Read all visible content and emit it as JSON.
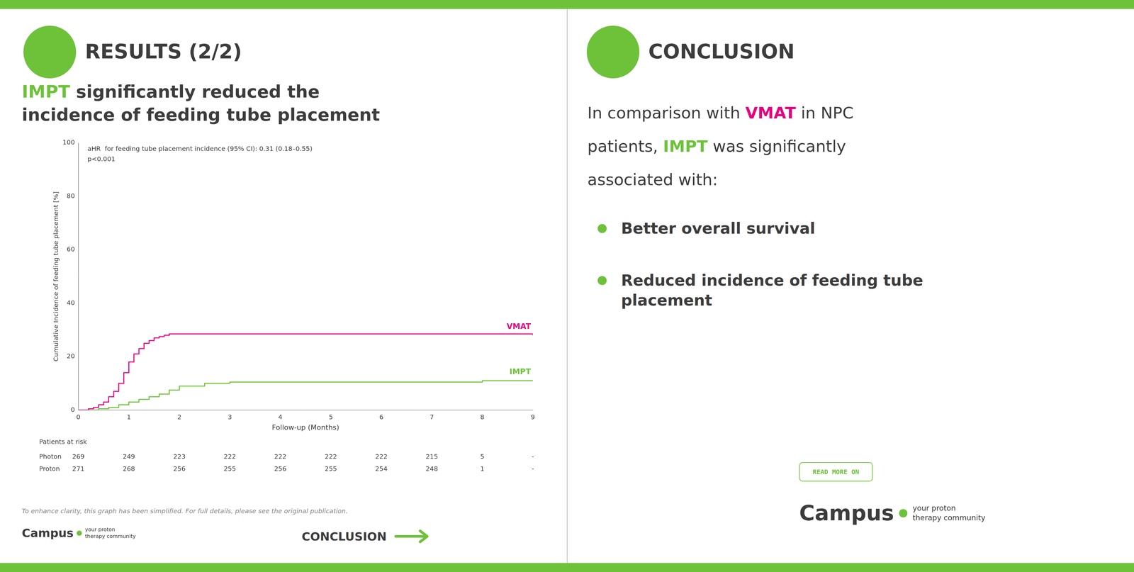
{
  "chart_data": {
    "type": "line",
    "subtitle": "RESULTS (2/2)",
    "title": [
      "IMPT significantly reduced the",
      "incidence of feeding tube placement"
    ],
    "xlabel": "Follow-up (Months)",
    "ylabel": "Cumulative Incidence of feeding tube placement [%]",
    "xlim": [
      0,
      9
    ],
    "xticks": [
      0,
      1,
      2,
      3,
      4,
      5,
      6,
      7,
      8,
      9
    ],
    "ylim": [
      0,
      100
    ],
    "yticks": [
      0,
      20,
      40,
      60,
      80,
      100
    ],
    "grid": false,
    "line_style": "steps",
    "series": [
      {
        "name": "VMAT",
        "color": "#e6007e",
        "x": [
          0,
          0.1,
          0.2,
          0.3,
          0.4,
          0.5,
          0.6,
          0.7,
          0.8,
          0.9,
          1.0,
          1.1,
          1.2,
          1.3,
          1.4,
          1.5,
          1.6,
          1.7,
          1.8,
          1.9,
          2.0,
          2.2,
          2.5,
          3.0,
          4.0,
          5.0,
          6.0,
          7.0,
          7.5,
          8.0,
          9.0
        ],
        "values": [
          0,
          0,
          0.5,
          1,
          2,
          3,
          5,
          7,
          10,
          14,
          18,
          21,
          23,
          25,
          26,
          27,
          27.5,
          28,
          28.5,
          28.5,
          28.5,
          28.5,
          28.5,
          28.5,
          28.5,
          28.5,
          28.5,
          28.5,
          28.5,
          28.5,
          28
        ]
      },
      {
        "name": "IMPT",
        "color": "#6dc23a",
        "x": [
          0,
          0.2,
          0.4,
          0.6,
          0.8,
          1.0,
          1.2,
          1.4,
          1.6,
          1.8,
          2.0,
          2.5,
          3.0,
          4.0,
          5.0,
          6.0,
          7.0,
          7.5,
          8.0,
          9.0
        ],
        "values": [
          0,
          0,
          0.5,
          1,
          2,
          3,
          4,
          5,
          6,
          7.5,
          9,
          10,
          10.5,
          10.5,
          10.5,
          10.5,
          10.5,
          10.5,
          11,
          11
        ]
      }
    ],
    "annotations": [
      "aHR  for feeding tube placement incidence (95% CI): 0.31 (0.18–0.55)",
      "p<0.001"
    ],
    "patients_at_risk": {
      "title": "Patients at risk",
      "rows": [
        {
          "name": "Photon",
          "values": [
            269,
            249,
            223,
            222,
            222,
            222,
            222,
            215,
            5,
            "-"
          ]
        },
        {
          "name": "Proton",
          "values": [
            271,
            268,
            256,
            255,
            256,
            255,
            254,
            248,
            1,
            "-"
          ]
        }
      ]
    },
    "disclaimer": "To enhance clarity, this graph has been simplified. For full details, please see the original publication."
  },
  "conclusion": {
    "header": "CONCLUSION",
    "intro": [
      "In comparison with VMAT in NPC",
      "patients, IMPT was significantly",
      "associated with:"
    ],
    "bullets": [
      [
        "Better overall survival"
      ],
      [
        "Reduced incidence of feeding tube",
        "placement"
      ]
    ],
    "read_more": "READ MORE ON"
  },
  "branding": {
    "name": "Campus",
    "tagline": [
      "your proton",
      "therapy community"
    ],
    "next": "CONCLUSION"
  }
}
